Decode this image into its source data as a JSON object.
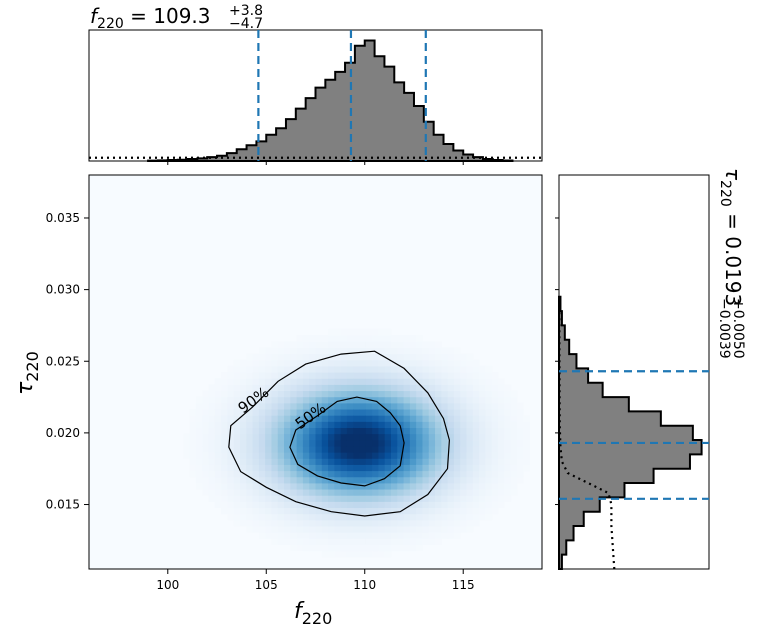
{
  "chart_data": [
    {
      "panel": "top-marginal",
      "type": "histogram",
      "title_main": "f",
      "title_sub": "220",
      "title_text": " = 109.3",
      "title_sup": "+3.8",
      "title_low": "−4.7",
      "xlim": [
        96,
        119
      ],
      "median": 109.3,
      "lower": 104.6,
      "upper": 113.1,
      "bins": [
        {
          "x0": 99.0,
          "x1": 99.5,
          "h": 0.003
        },
        {
          "x0": 99.5,
          "x1": 100.0,
          "h": 0.005
        },
        {
          "x0": 100.0,
          "x1": 100.5,
          "h": 0.008
        },
        {
          "x0": 100.5,
          "x1": 101.0,
          "h": 0.01
        },
        {
          "x0": 101.0,
          "x1": 101.5,
          "h": 0.015
        },
        {
          "x0": 101.5,
          "x1": 102.0,
          "h": 0.02
        },
        {
          "x0": 102.0,
          "x1": 102.5,
          "h": 0.03
        },
        {
          "x0": 102.5,
          "x1": 103.0,
          "h": 0.04
        },
        {
          "x0": 103.0,
          "x1": 103.5,
          "h": 0.06
        },
        {
          "x0": 103.5,
          "x1": 104.0,
          "h": 0.09
        },
        {
          "x0": 104.0,
          "x1": 104.5,
          "h": 0.12
        },
        {
          "x0": 104.5,
          "x1": 105.0,
          "h": 0.15
        },
        {
          "x0": 105.0,
          "x1": 105.5,
          "h": 0.2
        },
        {
          "x0": 105.5,
          "x1": 106.0,
          "h": 0.25
        },
        {
          "x0": 106.0,
          "x1": 106.5,
          "h": 0.32
        },
        {
          "x0": 106.5,
          "x1": 107.0,
          "h": 0.4
        },
        {
          "x0": 107.0,
          "x1": 107.5,
          "h": 0.48
        },
        {
          "x0": 107.5,
          "x1": 108.0,
          "h": 0.56
        },
        {
          "x0": 108.0,
          "x1": 108.5,
          "h": 0.62
        },
        {
          "x0": 108.5,
          "x1": 109.0,
          "h": 0.68
        },
        {
          "x0": 109.0,
          "x1": 109.5,
          "h": 0.75
        },
        {
          "x0": 109.5,
          "x1": 110.0,
          "h": 0.88
        },
        {
          "x0": 110.0,
          "x1": 110.5,
          "h": 0.92
        },
        {
          "x0": 110.5,
          "x1": 111.0,
          "h": 0.8
        },
        {
          "x0": 111.0,
          "x1": 111.5,
          "h": 0.72
        },
        {
          "x0": 111.5,
          "x1": 112.0,
          "h": 0.6
        },
        {
          "x0": 112.0,
          "x1": 112.5,
          "h": 0.52
        },
        {
          "x0": 112.5,
          "x1": 113.0,
          "h": 0.42
        },
        {
          "x0": 113.0,
          "x1": 113.5,
          "h": 0.3
        },
        {
          "x0": 113.5,
          "x1": 114.0,
          "h": 0.2
        },
        {
          "x0": 114.0,
          "x1": 114.5,
          "h": 0.13
        },
        {
          "x0": 114.5,
          "x1": 115.0,
          "h": 0.08
        },
        {
          "x0": 115.0,
          "x1": 115.5,
          "h": 0.05
        },
        {
          "x0": 115.5,
          "x1": 116.0,
          "h": 0.03
        },
        {
          "x0": 116.0,
          "x1": 116.5,
          "h": 0.015
        },
        {
          "x0": 116.5,
          "x1": 117.0,
          "h": 0.008
        },
        {
          "x0": 117.0,
          "x1": 117.5,
          "h": 0.004
        }
      ],
      "prior_level": 0.025,
      "fill_color": "#808080",
      "line_color": "#1f77b4"
    },
    {
      "panel": "joint-density",
      "type": "heatmap",
      "xlabel_main": "f",
      "xlabel_sub": "220",
      "ylabel_main": "τ",
      "ylabel_sub": "220",
      "xlim": [
        96,
        119
      ],
      "ylim": [
        0.0105,
        0.038
      ],
      "xticks": [
        100,
        105,
        110,
        115
      ],
      "xtick_labels": [
        "100",
        "105",
        "110",
        "115"
      ],
      "yticks": [
        0.015,
        0.02,
        0.025,
        0.03,
        0.035
      ],
      "ytick_labels": [
        "0.015",
        "0.020",
        "0.025",
        "0.030",
        "0.035"
      ],
      "peak": [
        109.7,
        0.0193
      ],
      "spread": [
        2.9,
        0.0026
      ],
      "contour_labels": [
        "50%",
        "90%"
      ],
      "contour_50": [
        [
          112.0,
          0.0193
        ],
        [
          111.8,
          0.0205
        ],
        [
          111.3,
          0.0214
        ],
        [
          110.6,
          0.0222
        ],
        [
          109.6,
          0.0225
        ],
        [
          108.6,
          0.0222
        ],
        [
          107.6,
          0.0212
        ],
        [
          106.5,
          0.0202
        ],
        [
          106.2,
          0.019
        ],
        [
          106.6,
          0.0178
        ],
        [
          107.6,
          0.017
        ],
        [
          108.8,
          0.0165
        ],
        [
          110.0,
          0.0163
        ],
        [
          111.0,
          0.0168
        ],
        [
          111.8,
          0.0177
        ]
      ],
      "contour_90": [
        [
          114.3,
          0.0195
        ],
        [
          114.0,
          0.021
        ],
        [
          113.2,
          0.0228
        ],
        [
          112.0,
          0.0245
        ],
        [
          110.5,
          0.0257
        ],
        [
          108.8,
          0.0255
        ],
        [
          107.0,
          0.0248
        ],
        [
          105.6,
          0.0236
        ],
        [
          104.3,
          0.0218
        ],
        [
          103.2,
          0.0205
        ],
        [
          103.1,
          0.019
        ],
        [
          103.7,
          0.0173
        ],
        [
          105.0,
          0.0162
        ],
        [
          106.5,
          0.0152
        ],
        [
          108.3,
          0.0145
        ],
        [
          110.0,
          0.0142
        ],
        [
          111.8,
          0.0145
        ],
        [
          113.2,
          0.0157
        ],
        [
          114.2,
          0.0175
        ]
      ]
    },
    {
      "panel": "right-marginal",
      "type": "histogram",
      "title_main": "τ",
      "title_sub": "220",
      "title_text": " = 0.0193",
      "title_sup": "+0.0050",
      "title_low": "−0.0039",
      "ylim": [
        0.0105,
        0.038
      ],
      "median": 0.0193,
      "lower": 0.0154,
      "upper": 0.0243,
      "bins": [
        {
          "y0": 0.0105,
          "y1": 0.0115,
          "h": 0.02
        },
        {
          "y0": 0.0115,
          "y1": 0.0125,
          "h": 0.05
        },
        {
          "y0": 0.0125,
          "y1": 0.0135,
          "h": 0.1
        },
        {
          "y0": 0.0135,
          "y1": 0.0145,
          "h": 0.17
        },
        {
          "y0": 0.0145,
          "y1": 0.0155,
          "h": 0.28
        },
        {
          "y0": 0.0155,
          "y1": 0.0165,
          "h": 0.45
        },
        {
          "y0": 0.0165,
          "y1": 0.0175,
          "h": 0.65
        },
        {
          "y0": 0.0175,
          "y1": 0.0185,
          "h": 0.9
        },
        {
          "y0": 0.0185,
          "y1": 0.0195,
          "h": 0.98
        },
        {
          "y0": 0.0195,
          "y1": 0.0205,
          "h": 0.92
        },
        {
          "y0": 0.0205,
          "y1": 0.0215,
          "h": 0.7
        },
        {
          "y0": 0.0215,
          "y1": 0.0225,
          "h": 0.48
        },
        {
          "y0": 0.0225,
          "y1": 0.0235,
          "h": 0.3
        },
        {
          "y0": 0.0235,
          "y1": 0.0245,
          "h": 0.2
        },
        {
          "y0": 0.0245,
          "y1": 0.0255,
          "h": 0.12
        },
        {
          "y0": 0.0255,
          "y1": 0.0265,
          "h": 0.07
        },
        {
          "y0": 0.0265,
          "y1": 0.0275,
          "h": 0.04
        },
        {
          "y0": 0.0275,
          "y1": 0.0285,
          "h": 0.02
        },
        {
          "y0": 0.0285,
          "y1": 0.0295,
          "h": 0.01
        }
      ],
      "prior_curve": [
        [
          0.0105,
          0.38
        ],
        [
          0.012,
          0.37
        ],
        [
          0.0135,
          0.36
        ],
        [
          0.015,
          0.36
        ],
        [
          0.0158,
          0.34
        ],
        [
          0.0165,
          0.2
        ],
        [
          0.0172,
          0.06
        ],
        [
          0.018,
          0.02
        ],
        [
          0.019,
          0.01
        ],
        [
          0.0205,
          0.005
        ],
        [
          0.022,
          0.004
        ],
        [
          0.025,
          0.003
        ],
        [
          0.029,
          0.002
        ]
      ]
    }
  ]
}
